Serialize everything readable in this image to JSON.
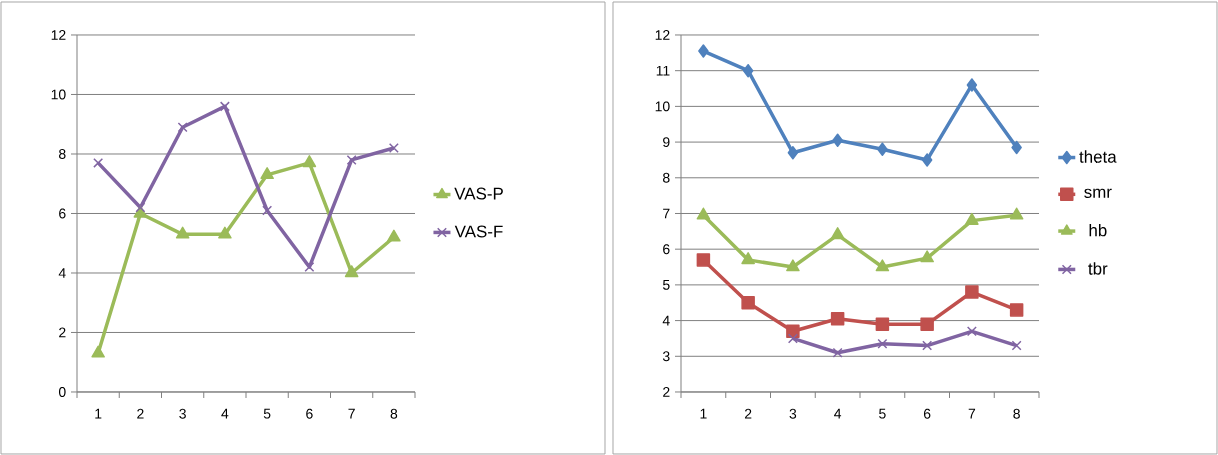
{
  "chart_data": [
    {
      "type": "line",
      "categories": [
        "1",
        "2",
        "3",
        "4",
        "5",
        "6",
        "7",
        "8"
      ],
      "ylim": [
        0,
        12
      ],
      "yticks": [
        0,
        2,
        4,
        6,
        8,
        10,
        12
      ],
      "grid": "y",
      "legend": "right",
      "series": [
        {
          "name": "VAS-P",
          "color": "#9bbb59",
          "marker": "triangle",
          "values": [
            1.3,
            6.0,
            5.3,
            5.3,
            7.3,
            7.7,
            4.0,
            5.2
          ]
        },
        {
          "name": "VAS-F",
          "color": "#8064a2",
          "marker": "cross",
          "values": [
            7.7,
            6.2,
            8.9,
            9.6,
            6.1,
            4.2,
            7.8,
            8.2
          ]
        }
      ]
    },
    {
      "type": "line",
      "categories": [
        "1",
        "2",
        "3",
        "4",
        "5",
        "6",
        "7",
        "8"
      ],
      "ylim": [
        2,
        12
      ],
      "yticks": [
        2,
        3,
        4,
        5,
        6,
        7,
        8,
        9,
        10,
        11,
        12
      ],
      "grid": "y",
      "legend": "right",
      "series": [
        {
          "name": "theta",
          "color": "#4f81bd",
          "marker": "diamond",
          "values": [
            11.55,
            11.0,
            8.7,
            9.05,
            8.8,
            8.5,
            10.6,
            8.85
          ]
        },
        {
          "name": "smr",
          "color": "#c0504d",
          "marker": "square",
          "values": [
            5.7,
            4.5,
            3.7,
            4.05,
            3.9,
            3.9,
            4.8,
            4.3
          ]
        },
        {
          "name": "hb",
          "color": "#9bbb59",
          "marker": "triangle",
          "values": [
            6.95,
            5.7,
            5.5,
            6.4,
            5.5,
            5.75,
            6.8,
            6.95
          ]
        },
        {
          "name": "tbr",
          "color": "#8064a2",
          "marker": "cross",
          "values": [
            null,
            null,
            3.5,
            3.1,
            3.35,
            3.3,
            3.7,
            3.3
          ]
        }
      ]
    }
  ]
}
